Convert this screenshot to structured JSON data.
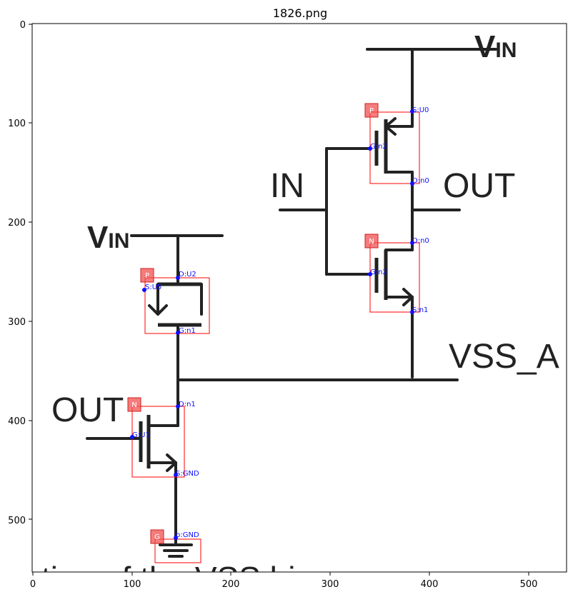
{
  "title": "1826.png",
  "x_ticks": [
    "0",
    "100",
    "200",
    "300",
    "400",
    "500"
  ],
  "y_ticks": [
    "0",
    "100",
    "200",
    "300",
    "400",
    "500"
  ],
  "labels": {
    "vin_top": "V",
    "vin_top_sub": "IN",
    "vin_left": "V",
    "vin_left_sub": "IN",
    "in": "IN",
    "out_right": "OUT",
    "out_left": "OUT",
    "vss": "VSS_A",
    "bottom_text": "tion of the VSS bias"
  },
  "components": [
    {
      "id": "m1",
      "tag": "P",
      "pins": [
        "S:U0",
        "G:n2",
        "D:n0"
      ]
    },
    {
      "id": "m2",
      "tag": "N",
      "pins": [
        "D:n0",
        "G:n2",
        "S:n1"
      ]
    },
    {
      "id": "m3",
      "tag": "P",
      "pins": [
        "D:U2",
        "S:U5",
        "G:n1"
      ]
    },
    {
      "id": "m4",
      "tag": "N",
      "pins": [
        "D:n1",
        "G:U1",
        "S:GND"
      ]
    },
    {
      "id": "g1",
      "tag": "G",
      "pins": [
        "p:GND"
      ]
    }
  ],
  "colors": {
    "wire": "#222222",
    "bbox": "#ff0000",
    "pin": "#1010ff",
    "tag": "#f05050"
  }
}
